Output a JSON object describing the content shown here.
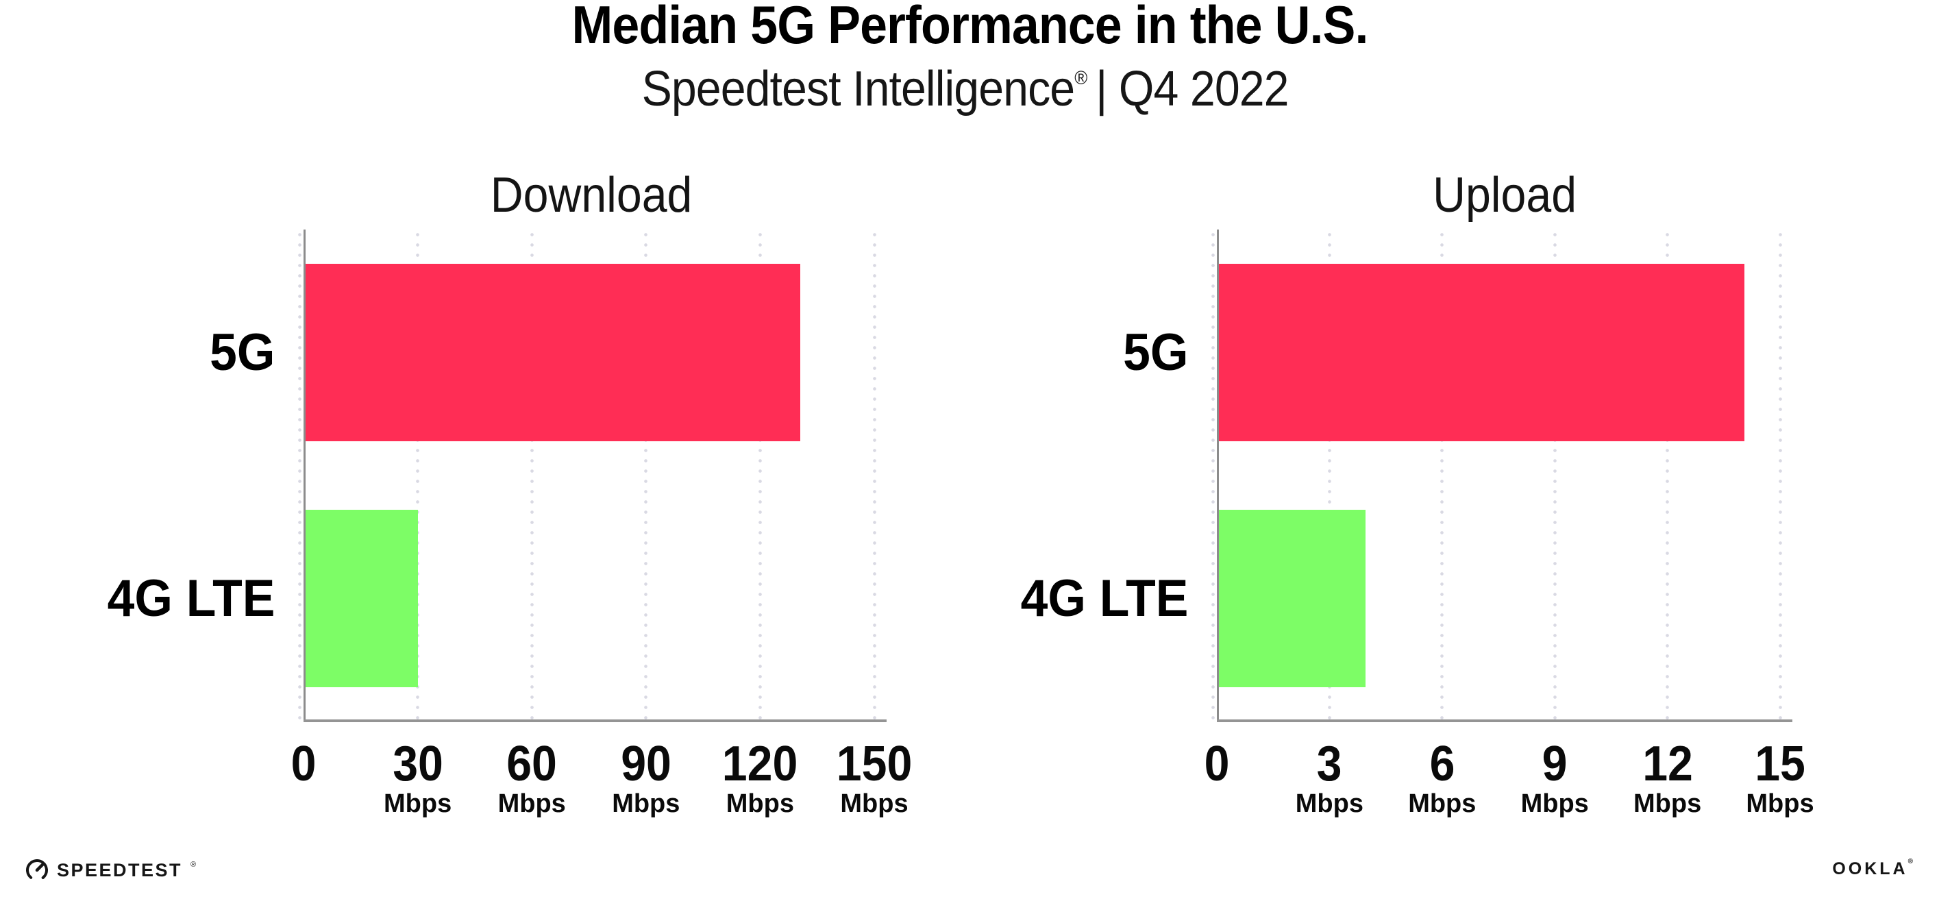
{
  "header": {
    "title": "Median 5G Performance in the U.S.",
    "subtitle_brand": "Speedtest Intelligence",
    "subtitle_reg": "®",
    "subtitle_rest": "| Q4 2022"
  },
  "colors": {
    "bar_5g": "#ff2d55",
    "bar_4g_lte": "#7dfd66",
    "y_axis_line": "#8c8c8c",
    "x_axis_line": "#949494",
    "gridline_dots": "#d9d9e3",
    "text": "#000000",
    "background": "#ffffff"
  },
  "chart_data": [
    {
      "type": "bar",
      "orientation": "horizontal",
      "title": "Download",
      "categories": [
        "5G",
        "4G LTE"
      ],
      "values": [
        130,
        29.5
      ],
      "unit": "Mbps",
      "xlim": [
        0,
        150
      ],
      "xticks": [
        0,
        30,
        60,
        90,
        120,
        150
      ],
      "bar_colors": [
        "#ff2d55",
        "#7dfd66"
      ],
      "grid": "dotted-vertical",
      "legend": "none"
    },
    {
      "type": "bar",
      "orientation": "horizontal",
      "title": "Upload",
      "categories": [
        "5G",
        "4G LTE"
      ],
      "values": [
        14,
        3.9
      ],
      "unit": "Mbps",
      "xlim": [
        0,
        15
      ],
      "xticks": [
        0,
        3,
        6,
        9,
        12,
        15
      ],
      "bar_colors": [
        "#ff2d55",
        "#7dfd66"
      ],
      "grid": "dotted-vertical",
      "legend": "none"
    }
  ],
  "footer": {
    "speedtest_wordmark": "SPEEDTEST",
    "speedtest_reg": "®",
    "ookla_wordmark": "OOKLA",
    "ookla_reg": "®"
  }
}
